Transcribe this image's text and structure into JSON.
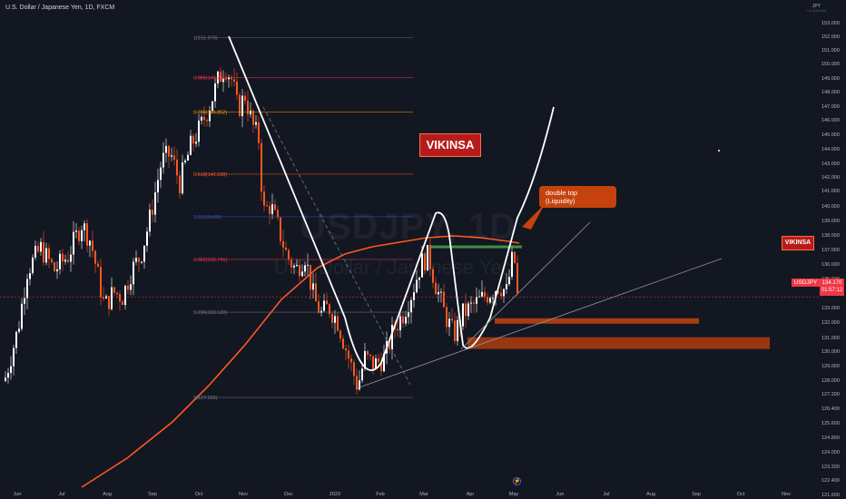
{
  "header": {
    "symbol_title": "U.S. Dollar / Japanese Yen, 1D, FXCM",
    "currency": "JPY",
    "currency_sub": "Lot Size Auto"
  },
  "watermark": {
    "ticker": "USDJPY, 1D",
    "name": "U.S. Dollar / Japanese Yen"
  },
  "annotations": {
    "brand_tag": "VIKINSA",
    "brand_tag_small": "VIKINSA",
    "callout_line1": "double top",
    "callout_line2": "(Liquidity)"
  },
  "price_label": {
    "symbol": "USDJPY",
    "price": "134.170",
    "countdown": "01:57:12"
  },
  "colors": {
    "background": "#131722",
    "up_candle": "#ffffff",
    "down_candle": "#ff5722",
    "moving_average": "#ff5722",
    "accent_red": "#b71c1c",
    "callout": "#c5420d"
  },
  "chart_data": {
    "type": "candlestick",
    "symbol": "USDJPY",
    "timeframe": "1D",
    "source": "FXCM",
    "x_tick_labels": [
      "Jun",
      "Jul",
      "Aug",
      "Sep",
      "Oct",
      "Nov",
      "Dec",
      "2023",
      "Feb",
      "Mar",
      "Apr",
      "May",
      "Jun",
      "Jul",
      "Aug",
      "Sep",
      "Oct",
      "Nov"
    ],
    "y_tick_labels": [
      "153.000",
      "152.000",
      "151.000",
      "150.000",
      "149.000",
      "148.000",
      "147.000",
      "146.000",
      "145.000",
      "144.000",
      "143.000",
      "142.000",
      "141.000",
      "140.000",
      "139.000",
      "138.000",
      "137.000",
      "136.000",
      "135.000",
      "133.000",
      "132.000",
      "131.000",
      "130.000",
      "129.000",
      "128.000",
      "127.200",
      "126.400",
      "125.600",
      "124.800",
      "124.000",
      "123.200",
      "122.400",
      "121.600"
    ],
    "y_range": [
      121.0,
      153.6
    ],
    "last_price": 134.17,
    "fibonacci": [
      {
        "label": "1(151.979)",
        "value": 151.979,
        "color": "#787b86"
      },
      {
        "label": "0.886(149.245)",
        "value": 149.245,
        "color": "#f23645"
      },
      {
        "label": "0.786(146.852)",
        "value": 146.852,
        "color": "#ff9800"
      },
      {
        "label": "0.618(142.598)",
        "value": 142.598,
        "color": "#ff5722"
      },
      {
        "label": "0.5(139.668)",
        "value": 139.668,
        "color": "#3f51b5"
      },
      {
        "label": "0.382(136.741)",
        "value": 136.741,
        "color": "#f23645"
      },
      {
        "label": "0.236(133.120)",
        "value": 133.12,
        "color": "#787b86"
      },
      {
        "label": "0(127.265)",
        "value": 127.265,
        "color": "#787b86"
      }
    ],
    "zones": [
      {
        "name": "resistance-line",
        "from": 137.4,
        "to": 137.7,
        "color": "#4caf50"
      },
      {
        "name": "demand-zone-upper",
        "from": 132.3,
        "to": 132.7,
        "color": "#c5420d"
      },
      {
        "name": "demand-zone-lower",
        "from": 130.6,
        "to": 131.4,
        "color": "#c5420d"
      }
    ],
    "grid": false
  }
}
